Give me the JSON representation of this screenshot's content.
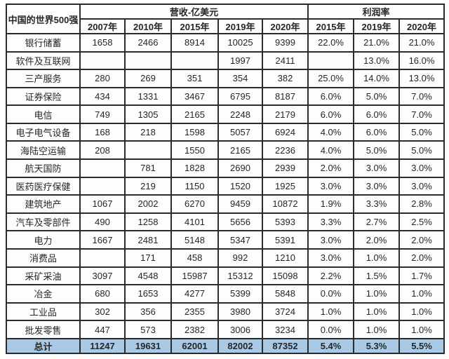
{
  "colors": {
    "header_bg": "#a9c9e5",
    "border": "#2b2b2b",
    "text": "#262626",
    "highlight_red": "#e03434",
    "cell_bg": "#fdfdfd"
  },
  "chart_data": {
    "type": "table",
    "title": "中国的世界500强",
    "group_headers": [
      {
        "label": "营收-亿美元",
        "colspan": 5
      },
      {
        "label": "利润率",
        "colspan": 3
      }
    ],
    "year_headers": [
      "2007年",
      "2010年",
      "2015年",
      "2019年",
      "2020年",
      "2015年",
      "2019年",
      "2020年"
    ],
    "rows": [
      {
        "label": "银行储蓄",
        "values": [
          "1658",
          "2466",
          "8914",
          "10025",
          "9399",
          "22.0%",
          "21.0%",
          "21.0%"
        ]
      },
      {
        "label": "软件及互联网",
        "values": [
          "",
          "",
          "",
          "1997",
          "2411",
          "",
          "13.0%",
          "16.0%"
        ]
      },
      {
        "label": "三产服务",
        "values": [
          "280",
          "269",
          "351",
          "354",
          "382",
          "25.0%",
          "14.0%",
          "13.0%"
        ]
      },
      {
        "label": "证券保险",
        "values": [
          "434",
          "1331",
          "3467",
          "6795",
          "8187",
          "6.0%",
          "5.0%",
          "7.0%"
        ]
      },
      {
        "label": "电信",
        "values": [
          "749",
          "1305",
          "2165",
          "2248",
          "2179",
          "6.0%",
          "6.0%",
          "7.0%"
        ]
      },
      {
        "label": "电子电气设备",
        "values": [
          "168",
          "218",
          "1598",
          "5057",
          "6924",
          "4.0%",
          "6.0%",
          "5.0%"
        ]
      },
      {
        "label": "海陆空运输",
        "values": [
          "208",
          "",
          "1550",
          "2165",
          "2236",
          "4.0%",
          "5.0%",
          "5.0%"
        ]
      },
      {
        "label": "航天国防",
        "values": [
          "",
          "781",
          "1828",
          "2690",
          "2939",
          "2.0%",
          "3.0%",
          "3.0%"
        ]
      },
      {
        "label": "医药医疗保健",
        "values": [
          "",
          "219",
          "1150",
          "1520",
          "1925",
          "3.0%",
          "3.0%",
          "3.0%"
        ]
      },
      {
        "label": "建筑地产",
        "values": [
          "1067",
          "2002",
          "6270",
          "9459",
          "10872",
          "1.9%",
          "3.3%",
          "2.8%"
        ]
      },
      {
        "label": "汽车及零部件",
        "values": [
          "490",
          "1258",
          "4101",
          "5656",
          "5393",
          "3.3%",
          "2.7%",
          "2.5%"
        ]
      },
      {
        "label": "电力",
        "values": [
          "1667",
          "2481",
          "5148",
          "5347",
          "5391",
          "3.0%",
          "2.0%",
          "2.0%"
        ]
      },
      {
        "label": "消费品",
        "values": [
          "",
          "171",
          "458",
          "992",
          "1210",
          "3.0%",
          "1.0%",
          "2.0%"
        ]
      },
      {
        "label": "采矿采油",
        "values": [
          "3097",
          "4548",
          "15987",
          "15312",
          "15098",
          "2.2%",
          "1.5%",
          "1.7%"
        ]
      },
      {
        "label": "冶金",
        "values": [
          "680",
          "1653",
          "4277",
          "5399",
          "5848",
          "0.0%",
          "1.0%",
          "1.0%"
        ]
      },
      {
        "label": "工业品",
        "values": [
          "302",
          "356",
          "2355",
          "3980",
          "3724",
          "1.0%",
          "1.0%",
          "1.0%"
        ]
      },
      {
        "label": "批发零售",
        "values": [
          "447",
          "573",
          "2382",
          "3006",
          "3234",
          "0.0%",
          "1.0%",
          "1.0%"
        ]
      }
    ],
    "total": {
      "label": "总计",
      "values": [
        "11247",
        "19631",
        "62001",
        "82002",
        "87352",
        "5.4%",
        "5.3%",
        "5.5%"
      ]
    }
  }
}
